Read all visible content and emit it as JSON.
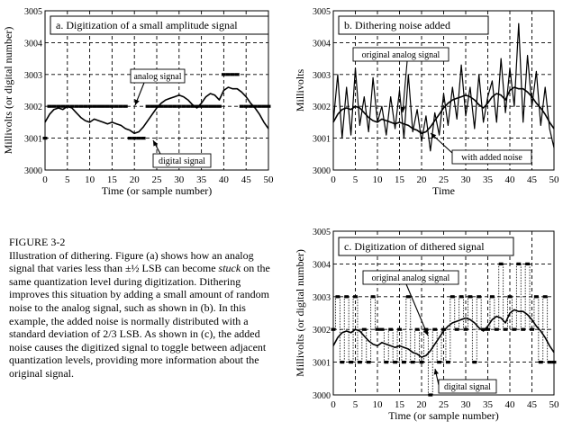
{
  "caption": {
    "heading": "FIGURE 3-2",
    "text_before_italic": "Illustration of dithering.  Figure (a) shows how an analog signal that varies less than ±½ LSB can become ",
    "italic_word": "stuck",
    "text_after_italic": " on the same quantization level during digitization.  Dithering improves this situation by adding a small amount of random noise to the analog signal, such as shown in (b). In this example, the added noise is normally distributed with a standard deviation of 2/3 LSB. As shown in (c), the added noise causes the digitized signal to toggle between adjacent quantization levels, providing more information about the original signal."
  },
  "chart_data": [
    {
      "type": "line",
      "title": "a.  Digitization of a small amplitude signal",
      "xlabel": "Time (or sample number)",
      "ylabel": "Millivolts (or digital number)",
      "xlim": [
        0,
        50
      ],
      "ylim": [
        3000,
        3005
      ],
      "xticks": [
        0,
        5,
        10,
        15,
        20,
        25,
        30,
        35,
        40,
        45,
        50
      ],
      "yticks": [
        3000,
        3001,
        3002,
        3003,
        3004,
        3005
      ],
      "grid": true,
      "annotations": [
        {
          "text": "analog signal"
        },
        {
          "text": "digital signal"
        }
      ],
      "series": [
        {
          "name": "analog signal",
          "style": "line",
          "x": [
            0,
            1,
            2,
            3,
            4,
            5,
            6,
            7,
            8,
            9,
            10,
            11,
            12,
            13,
            14,
            15,
            16,
            17,
            18,
            19,
            20,
            21,
            22,
            23,
            24,
            25,
            26,
            27,
            28,
            29,
            30,
            31,
            32,
            33,
            34,
            35,
            36,
            37,
            38,
            39,
            40,
            41,
            42,
            43,
            44,
            45,
            46,
            47,
            48,
            49,
            50
          ],
          "y": [
            3001.5,
            3001.75,
            3001.9,
            3001.95,
            3001.9,
            3002.0,
            3001.95,
            3001.8,
            3001.65,
            3001.55,
            3001.5,
            3001.6,
            3001.55,
            3001.5,
            3001.45,
            3001.5,
            3001.45,
            3001.4,
            3001.3,
            3001.25,
            3001.15,
            3001.2,
            3001.35,
            3001.55,
            3001.75,
            3001.95,
            3002.1,
            3002.2,
            3002.25,
            3002.3,
            3002.35,
            3002.3,
            3002.2,
            3002.05,
            3001.95,
            3002.1,
            3002.3,
            3002.4,
            3002.35,
            3002.2,
            3002.5,
            3002.6,
            3002.55,
            3002.55,
            3002.45,
            3002.3,
            3002.1,
            3001.95,
            3001.75,
            3001.5,
            3001.3
          ]
        },
        {
          "name": "digital signal",
          "style": "levels",
          "x": [
            0,
            1,
            2,
            3,
            4,
            5,
            6,
            7,
            8,
            9,
            10,
            11,
            12,
            13,
            14,
            15,
            16,
            17,
            18,
            19,
            20,
            21,
            22,
            23,
            24,
            25,
            26,
            27,
            28,
            29,
            30,
            31,
            32,
            33,
            34,
            35,
            36,
            37,
            38,
            39,
            40,
            41,
            42,
            43,
            44,
            45,
            46,
            47,
            48,
            49,
            50
          ],
          "y": [
            3001,
            3002,
            3002,
            3002,
            3002,
            3002,
            3002,
            3002,
            3002,
            3002,
            3002,
            3002,
            3002,
            3002,
            3002,
            3002,
            3002,
            3002,
            3002,
            3001,
            3001,
            3001,
            3001,
            3002,
            3002,
            3002,
            3002,
            3002,
            3002,
            3002,
            3002,
            3002,
            3002,
            3002,
            3002,
            3002,
            3002,
            3002,
            3002,
            3002,
            3003,
            3003,
            3003,
            3003,
            3002,
            3002,
            3002,
            3002,
            3002,
            3002,
            3002
          ]
        }
      ]
    },
    {
      "type": "line",
      "title": "b.  Dithering noise added",
      "xlabel": "Time",
      "ylabel": "Millivolts",
      "xlim": [
        0,
        50
      ],
      "ylim": [
        3000,
        3005
      ],
      "xticks": [
        0,
        5,
        10,
        15,
        20,
        25,
        30,
        35,
        40,
        45,
        50
      ],
      "yticks": [
        3000,
        3001,
        3002,
        3003,
        3004,
        3005
      ],
      "grid": true,
      "annotations": [
        {
          "text": "original analog signal"
        },
        {
          "text": "with added noise"
        }
      ],
      "series": [
        {
          "name": "original analog signal",
          "style": "line",
          "x": [
            0,
            1,
            2,
            3,
            4,
            5,
            6,
            7,
            8,
            9,
            10,
            11,
            12,
            13,
            14,
            15,
            16,
            17,
            18,
            19,
            20,
            21,
            22,
            23,
            24,
            25,
            26,
            27,
            28,
            29,
            30,
            31,
            32,
            33,
            34,
            35,
            36,
            37,
            38,
            39,
            40,
            41,
            42,
            43,
            44,
            45,
            46,
            47,
            48,
            49,
            50
          ],
          "y": [
            3001.5,
            3001.75,
            3001.9,
            3001.95,
            3001.9,
            3002.0,
            3001.95,
            3001.8,
            3001.65,
            3001.55,
            3001.5,
            3001.6,
            3001.55,
            3001.5,
            3001.45,
            3001.5,
            3001.45,
            3001.4,
            3001.3,
            3001.25,
            3001.15,
            3001.2,
            3001.35,
            3001.55,
            3001.75,
            3001.95,
            3002.1,
            3002.2,
            3002.25,
            3002.3,
            3002.35,
            3002.3,
            3002.2,
            3002.05,
            3001.95,
            3002.1,
            3002.3,
            3002.4,
            3002.35,
            3002.2,
            3002.5,
            3002.6,
            3002.55,
            3002.55,
            3002.45,
            3002.3,
            3002.1,
            3001.95,
            3001.75,
            3001.5,
            3001.3
          ]
        },
        {
          "name": "with added noise",
          "style": "line",
          "x": [
            0,
            1,
            2,
            3,
            4,
            5,
            6,
            7,
            8,
            9,
            10,
            11,
            12,
            13,
            14,
            15,
            16,
            17,
            18,
            19,
            20,
            21,
            22,
            23,
            24,
            25,
            26,
            27,
            28,
            29,
            30,
            31,
            32,
            33,
            34,
            35,
            36,
            37,
            38,
            39,
            40,
            41,
            42,
            43,
            44,
            45,
            46,
            47,
            48,
            49,
            50
          ],
          "y": [
            3001.5,
            3003.0,
            3001.0,
            3002.6,
            3001.1,
            3003.2,
            3001.4,
            3002.3,
            3001.2,
            3002.9,
            3001.5,
            3002.0,
            3001.1,
            3002.3,
            3001.3,
            3002.5,
            3001.0,
            3003.0,
            3001.2,
            3001.9,
            3000.9,
            3001.7,
            3000.6,
            3001.8,
            3001.1,
            3002.4,
            3001.4,
            3002.6,
            3001.6,
            3003.3,
            3001.7,
            3002.6,
            3001.3,
            3003.0,
            3001.5,
            3002.3,
            3002.8,
            3001.5,
            3003.5,
            3001.8,
            3003.2,
            3002.0,
            3004.6,
            3001.5,
            3003.6,
            3002.0,
            3003.1,
            3001.4,
            3002.6,
            3001.3,
            3000.7
          ]
        }
      ]
    },
    {
      "type": "line",
      "title": "c.  Digitization of dithered signal",
      "xlabel": "Time (or sample number)",
      "ylabel": "Millivolts (or digital number)",
      "xlim": [
        0,
        50
      ],
      "ylim": [
        3000,
        3005
      ],
      "xticks": [
        0,
        5,
        10,
        15,
        20,
        25,
        30,
        35,
        40,
        45,
        50
      ],
      "yticks": [
        3000,
        3001,
        3002,
        3003,
        3004,
        3005
      ],
      "grid": true,
      "annotations": [
        {
          "text": "original analog signal"
        },
        {
          "text": "digital signal"
        }
      ],
      "series": [
        {
          "name": "original analog signal",
          "style": "line",
          "x": [
            0,
            1,
            2,
            3,
            4,
            5,
            6,
            7,
            8,
            9,
            10,
            11,
            12,
            13,
            14,
            15,
            16,
            17,
            18,
            19,
            20,
            21,
            22,
            23,
            24,
            25,
            26,
            27,
            28,
            29,
            30,
            31,
            32,
            33,
            34,
            35,
            36,
            37,
            38,
            39,
            40,
            41,
            42,
            43,
            44,
            45,
            46,
            47,
            48,
            49,
            50
          ],
          "y": [
            3001.5,
            3001.75,
            3001.9,
            3001.95,
            3001.9,
            3002.0,
            3001.95,
            3001.8,
            3001.65,
            3001.55,
            3001.5,
            3001.6,
            3001.55,
            3001.5,
            3001.45,
            3001.5,
            3001.45,
            3001.4,
            3001.3,
            3001.25,
            3001.15,
            3001.2,
            3001.35,
            3001.55,
            3001.75,
            3001.95,
            3002.1,
            3002.2,
            3002.25,
            3002.3,
            3002.35,
            3002.3,
            3002.2,
            3002.05,
            3001.95,
            3002.1,
            3002.3,
            3002.4,
            3002.35,
            3002.2,
            3002.5,
            3002.6,
            3002.55,
            3002.55,
            3002.45,
            3002.3,
            3002.1,
            3001.95,
            3001.75,
            3001.5,
            3001.3
          ]
        },
        {
          "name": "digital signal",
          "style": "levels",
          "x": [
            0,
            1,
            2,
            3,
            4,
            5,
            6,
            7,
            8,
            9,
            10,
            11,
            12,
            13,
            14,
            15,
            16,
            17,
            18,
            19,
            20,
            21,
            22,
            23,
            24,
            25,
            26,
            27,
            28,
            29,
            30,
            31,
            32,
            33,
            34,
            35,
            36,
            37,
            38,
            39,
            40,
            41,
            42,
            43,
            44,
            45,
            46,
            47,
            48,
            49,
            50
          ],
          "y": [
            3002,
            3003,
            3001,
            3003,
            3001,
            3003,
            3001,
            3002,
            3001,
            3003,
            3002,
            3002,
            3001,
            3002,
            3001,
            3002,
            3001,
            3003,
            3001,
            3002,
            3001,
            3002,
            3000,
            3002,
            3001,
            3002,
            3001,
            3003,
            3002,
            3003,
            3002,
            3003,
            3001,
            3003,
            3002,
            3002,
            3003,
            3002,
            3004,
            3002,
            3003,
            3002,
            3004,
            3002,
            3004,
            3002,
            3003,
            3001,
            3003,
            3001,
            3001
          ]
        }
      ]
    }
  ]
}
